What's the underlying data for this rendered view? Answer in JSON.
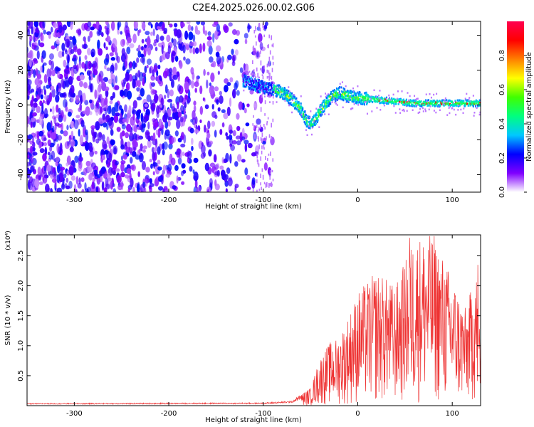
{
  "title": "C2E4.2025.026.00.02.G06",
  "chart_data": [
    {
      "type": "heatmap",
      "xlabel": "Height of straight line (km)",
      "ylabel": "Frequency (Hz)",
      "xlim": [
        -350,
        130
      ],
      "ylim": [
        -50,
        48
      ],
      "xticks": [
        -300,
        -200,
        -100,
        0,
        100
      ],
      "xtick_labels": [
        "-300",
        "-200",
        "-100",
        "0",
        "100"
      ],
      "yticks": [
        -40,
        -20,
        0,
        20,
        40
      ],
      "ytick_labels": [
        "-40",
        "-20",
        "0",
        "20",
        "40"
      ],
      "noise_region_x": [
        -350,
        -95
      ],
      "signal_track": {
        "x": [
          -122,
          -112,
          -100,
          -90,
          -80,
          -70,
          -60,
          -55,
          -50,
          -45,
          -40,
          -30,
          -20,
          -10,
          0,
          20,
          40,
          60,
          80,
          100,
          128
        ],
        "y": [
          14,
          12,
          10,
          9,
          7,
          3,
          -3,
          -9,
          -11,
          -8,
          -3,
          4,
          7,
          5,
          4,
          3,
          2,
          1,
          1,
          1,
          1
        ]
      },
      "colorbar": {
        "label": "Normalized spectral amplitude",
        "range": [
          0,
          1
        ],
        "ticks": [
          0.0,
          0.2,
          0.4,
          0.6,
          0.8
        ],
        "tick_labels": [
          "0.0",
          "0.2",
          "0.4",
          "0.6",
          "0.8"
        ],
        "colors": [
          "#ffffff",
          "#8000ff",
          "#0000ff",
          "#00c8ff",
          "#00ff80",
          "#40ff00",
          "#ffff00",
          "#ff8000",
          "#ff0000",
          "#ff0050"
        ]
      }
    },
    {
      "type": "line",
      "xlabel": "Height of straight line (km)",
      "ylabel": "SNR (10 * v/v)",
      "multiplier_label": "(x10⁴)",
      "xlim": [
        -350,
        130
      ],
      "ylim": [
        0,
        2.85
      ],
      "xticks": [
        -300,
        -200,
        -100,
        0,
        100
      ],
      "xtick_labels": [
        "-300",
        "-200",
        "-100",
        "0",
        "100"
      ],
      "yticks": [
        0.5,
        1.0,
        1.5,
        2.0,
        2.5
      ],
      "ytick_labels": [
        "0.5",
        "1.0",
        "1.5",
        "2.0",
        "2.5"
      ],
      "series": [
        {
          "name": "SNR",
          "color": "#ee3333",
          "envelope": {
            "x": [
              -350,
              -100,
              -70,
              -50,
              -40,
              -30,
              -20,
              -10,
              0,
              20,
              40,
              60,
              80,
              100,
              115,
              125,
              130
            ],
            "y": [
              0.04,
              0.05,
              0.08,
              0.3,
              0.8,
              1.05,
              1.15,
              1.5,
              1.9,
              2.25,
              2.0,
              2.85,
              2.85,
              2.15,
              1.6,
              2.35,
              1.35
            ]
          },
          "peaks": [
            {
              "x": 55,
              "y": 2.8
            },
            {
              "x": 81,
              "y": 2.83
            },
            {
              "x": 127,
              "y": 2.35
            }
          ]
        }
      ]
    }
  ]
}
